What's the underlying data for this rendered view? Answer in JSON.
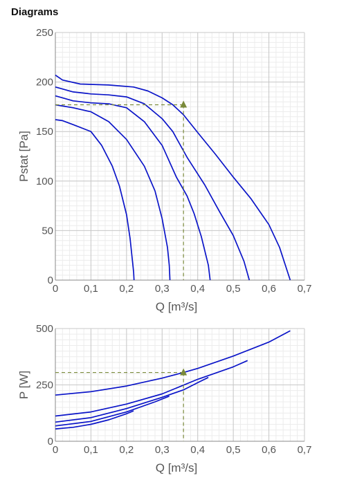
{
  "heading": "Diagrams",
  "colors": {
    "curve": "#0a14c8",
    "operating": "#7a8a3a",
    "gridMajor": "#c8c8c8",
    "gridMinor": "#ececec",
    "text": "#555555"
  },
  "chart_data": [
    {
      "type": "line",
      "xlabel": "Q [m³/s]",
      "ylabel": "Pstat [Pa]",
      "xlim": [
        0,
        0.7
      ],
      "ylim": [
        0,
        250
      ],
      "xticks": [
        0,
        0.1,
        0.2,
        0.3,
        0.4,
        0.5,
        0.6,
        0.7
      ],
      "xtick_labels": [
        "0",
        "0,1",
        "0,2",
        "0,3",
        "0,4",
        "0,5",
        "0,6",
        "0,7"
      ],
      "yticks": [
        0,
        50,
        100,
        150,
        200,
        250
      ],
      "ytick_labels": [
        "0",
        "50",
        "100",
        "150",
        "200",
        "250"
      ],
      "grid": true,
      "series": [
        {
          "values": [
            [
              0,
              207
            ],
            [
              0.02,
              202
            ],
            [
              0.07,
              198
            ],
            [
              0.15,
              197
            ],
            [
              0.22,
              195
            ],
            [
              0.26,
              191
            ],
            [
              0.3,
              184
            ],
            [
              0.33,
              177
            ],
            [
              0.36,
              167
            ],
            [
              0.4,
              149
            ],
            [
              0.45,
              127
            ],
            [
              0.5,
              104
            ],
            [
              0.55,
              82
            ],
            [
              0.6,
              56
            ],
            [
              0.63,
              33
            ],
            [
              0.66,
              0
            ]
          ]
        },
        {
          "values": [
            [
              0,
              195
            ],
            [
              0.05,
              190
            ],
            [
              0.1,
              188
            ],
            [
              0.15,
              187
            ],
            [
              0.2,
              185
            ],
            [
              0.25,
              178
            ],
            [
              0.3,
              163
            ],
            [
              0.33,
              150
            ],
            [
              0.37,
              124
            ],
            [
              0.42,
              96
            ],
            [
              0.46,
              70
            ],
            [
              0.5,
              45
            ],
            [
              0.53,
              19
            ],
            [
              0.545,
              0
            ]
          ]
        },
        {
          "values": [
            [
              0,
              186
            ],
            [
              0.05,
              181
            ],
            [
              0.1,
              179
            ],
            [
              0.15,
              178
            ],
            [
              0.2,
              174
            ],
            [
              0.25,
              160
            ],
            [
              0.3,
              136
            ],
            [
              0.34,
              104
            ],
            [
              0.37,
              85
            ],
            [
              0.39,
              67
            ],
            [
              0.41,
              44
            ],
            [
              0.43,
              15
            ],
            [
              0.435,
              0
            ]
          ]
        },
        {
          "values": [
            [
              0,
              177
            ],
            [
              0.05,
              174
            ],
            [
              0.1,
              170
            ],
            [
              0.15,
              160
            ],
            [
              0.2,
              142
            ],
            [
              0.25,
              115
            ],
            [
              0.28,
              90
            ],
            [
              0.3,
              62
            ],
            [
              0.315,
              33
            ],
            [
              0.32,
              15
            ],
            [
              0.322,
              0
            ]
          ]
        },
        {
          "values": [
            [
              0,
              162
            ],
            [
              0.02,
              161
            ],
            [
              0.05,
              157
            ],
            [
              0.1,
              150
            ],
            [
              0.13,
              136
            ],
            [
              0.16,
              115
            ],
            [
              0.18,
              95
            ],
            [
              0.2,
              66
            ],
            [
              0.21,
              42
            ],
            [
              0.22,
              8
            ],
            [
              0.221,
              0
            ]
          ]
        }
      ],
      "operating_point": [
        0.36,
        177
      ]
    },
    {
      "type": "line",
      "xlabel": "Q [m³/s]",
      "ylabel": "P [W]",
      "xlim": [
        0,
        0.7
      ],
      "ylim": [
        0,
        500
      ],
      "xticks": [
        0,
        0.1,
        0.2,
        0.3,
        0.4,
        0.5,
        0.6,
        0.7
      ],
      "xtick_labels": [
        "0",
        "0,1",
        "0,2",
        "0,3",
        "0,4",
        "0,5",
        "0,6",
        "0,7"
      ],
      "yticks": [
        0,
        250,
        500
      ],
      "ytick_labels": [
        "0",
        "250",
        "500"
      ],
      "grid": true,
      "series": [
        {
          "values": [
            [
              0,
              205
            ],
            [
              0.1,
              220
            ],
            [
              0.2,
              245
            ],
            [
              0.3,
              280
            ],
            [
              0.36,
              305
            ],
            [
              0.4,
              323
            ],
            [
              0.5,
              378
            ],
            [
              0.6,
              440
            ],
            [
              0.66,
              490
            ]
          ]
        },
        {
          "values": [
            [
              0,
              112
            ],
            [
              0.1,
              130
            ],
            [
              0.2,
              165
            ],
            [
              0.3,
              210
            ],
            [
              0.4,
              275
            ],
            [
              0.5,
              330
            ],
            [
              0.54,
              358
            ]
          ]
        },
        {
          "values": [
            [
              0,
              85
            ],
            [
              0.1,
              105
            ],
            [
              0.2,
              145
            ],
            [
              0.3,
              195
            ],
            [
              0.36,
              228
            ],
            [
              0.4,
              260
            ],
            [
              0.43,
              283
            ]
          ]
        },
        {
          "values": [
            [
              0,
              68
            ],
            [
              0.1,
              88
            ],
            [
              0.2,
              130
            ],
            [
              0.28,
              175
            ],
            [
              0.32,
              200
            ]
          ]
        },
        {
          "values": [
            [
              0,
              55
            ],
            [
              0.05,
              62
            ],
            [
              0.1,
              75
            ],
            [
              0.15,
              95
            ],
            [
              0.2,
              122
            ],
            [
              0.22,
              135
            ]
          ]
        }
      ],
      "operating_point": [
        0.36,
        305
      ]
    }
  ]
}
